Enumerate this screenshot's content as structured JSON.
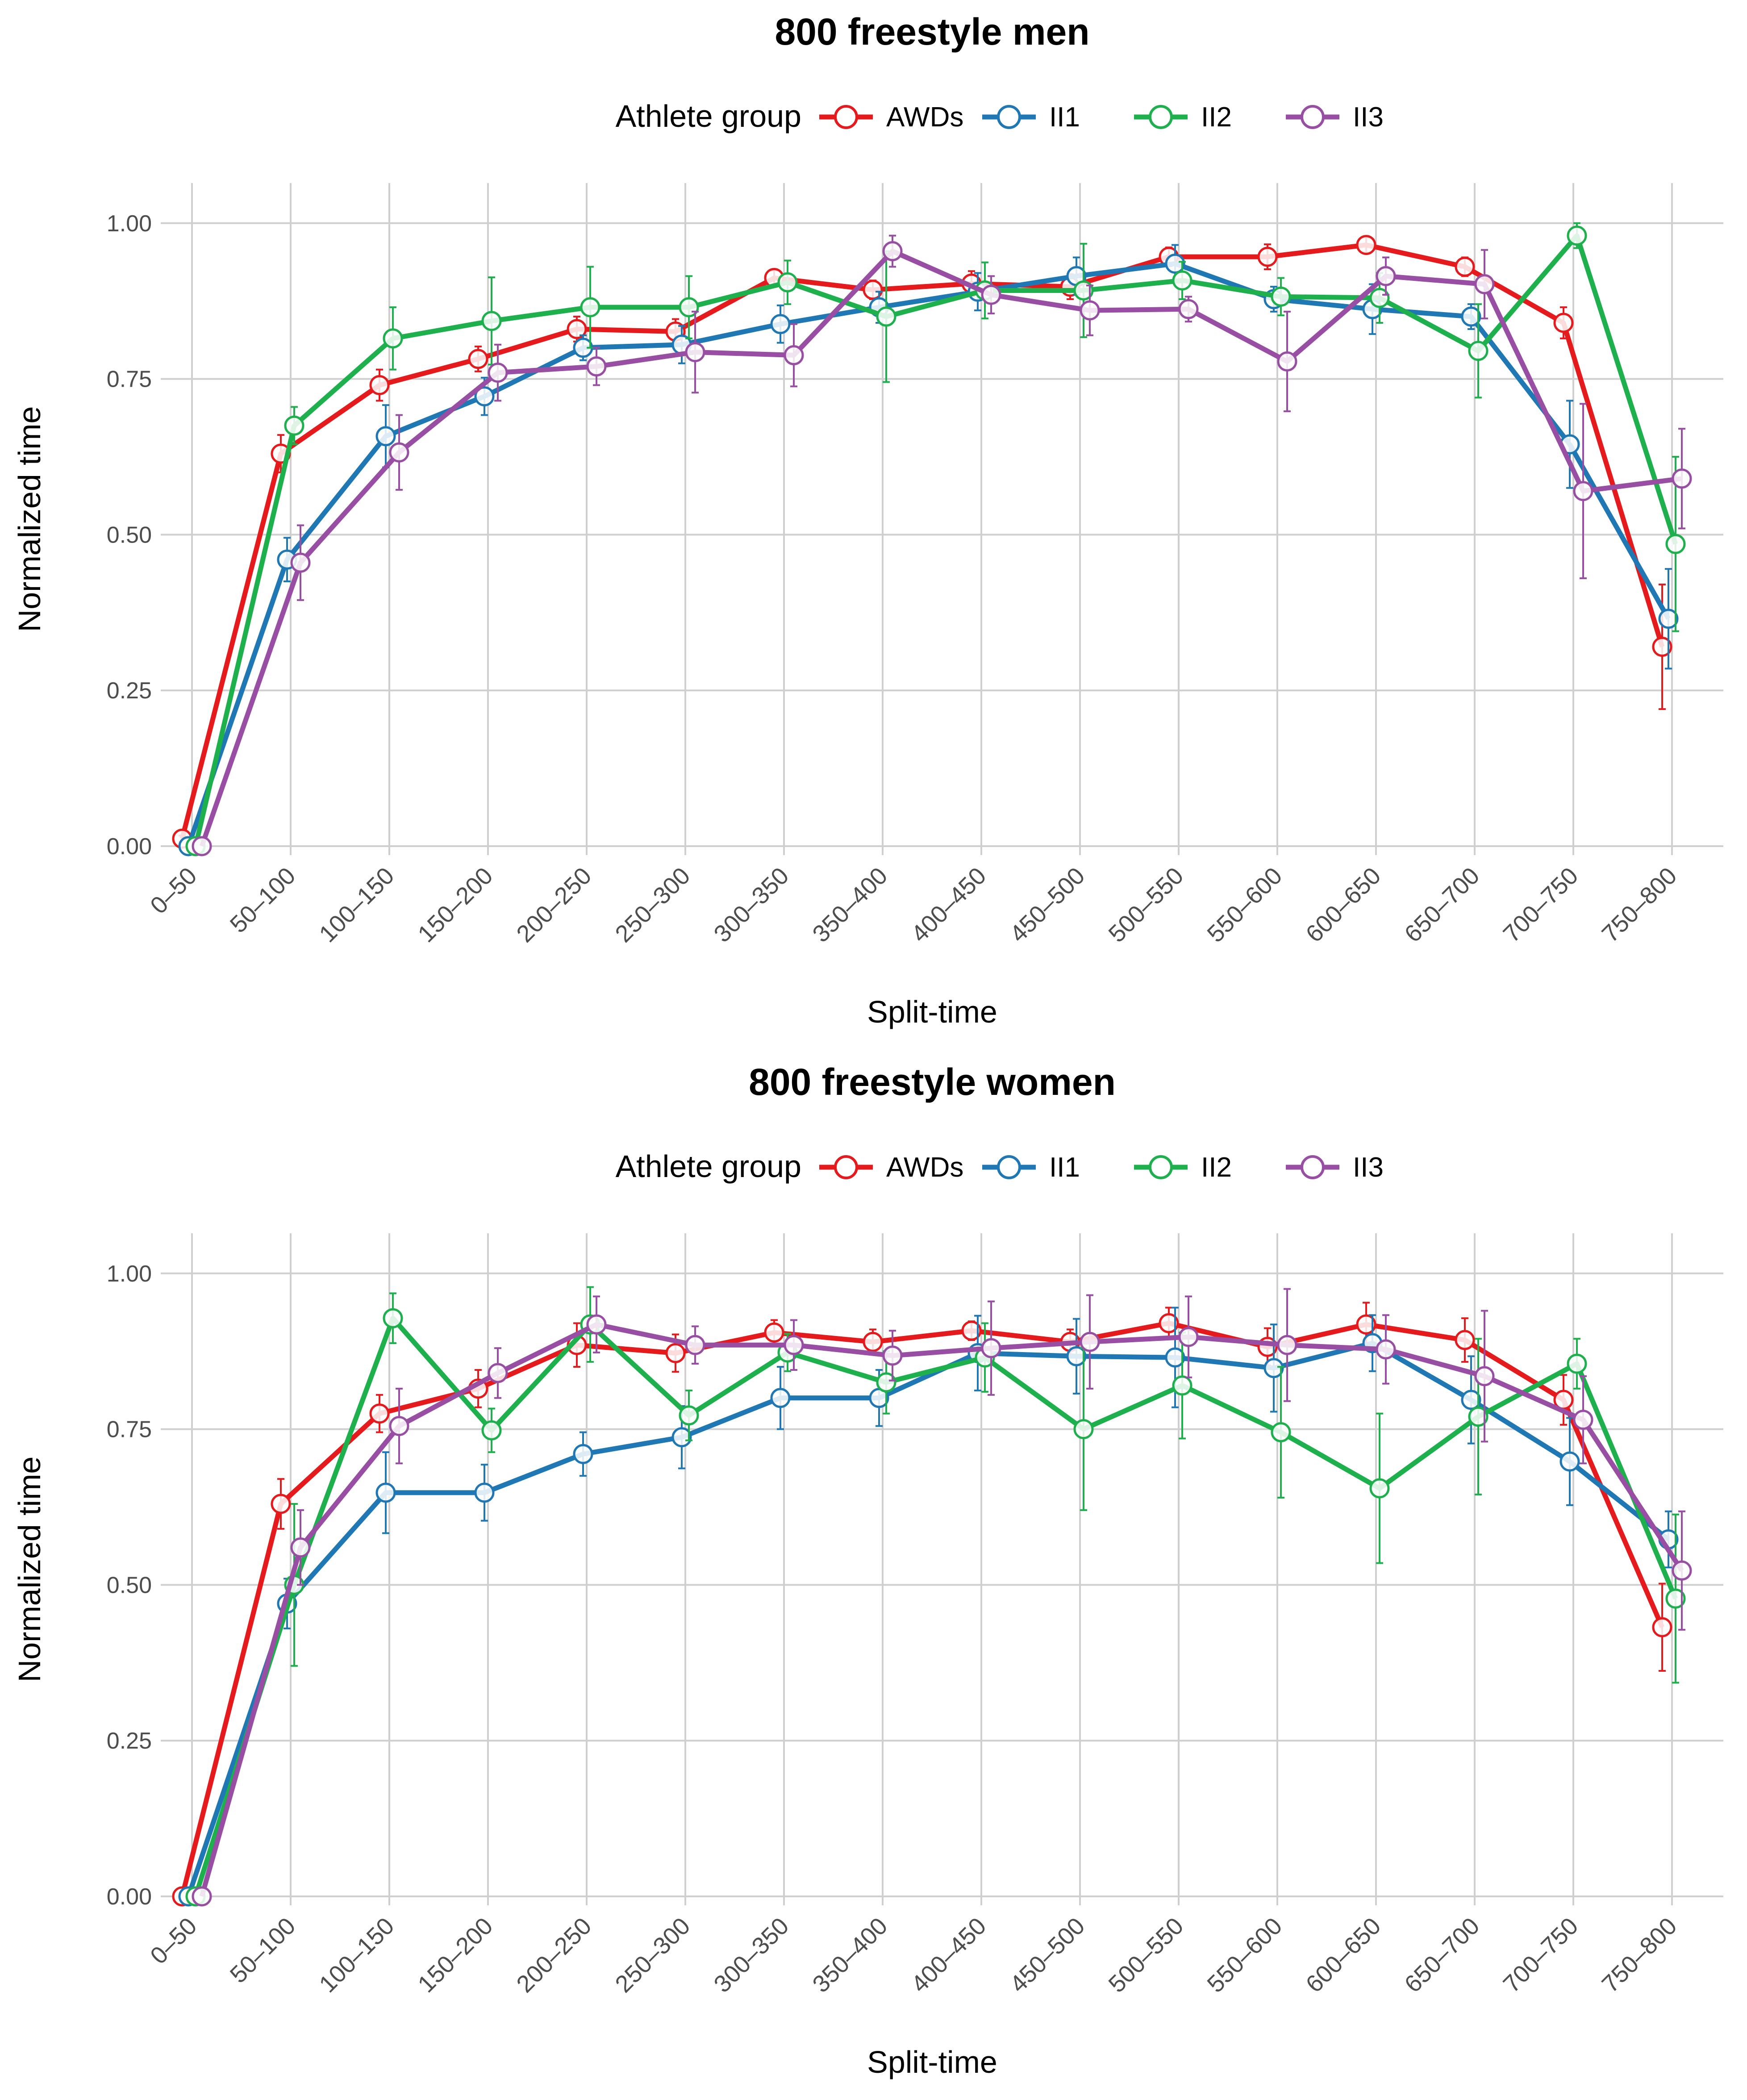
{
  "chart_data": [
    {
      "type": "line",
      "title": "800 freestyle men",
      "xlabel": "Split-time",
      "ylabel": "Normalized time",
      "ylim": [
        0,
        1.05
      ],
      "yticks": [
        "0.00",
        "0.25",
        "0.50",
        "0.75",
        "1.00"
      ],
      "legend_title": "Athlete group",
      "legend_position": "top",
      "grid": true,
      "categories": [
        "0–50",
        "50–100",
        "100–150",
        "150–200",
        "200–250",
        "250–300",
        "300–350",
        "350–400",
        "400–450",
        "450–500",
        "500–550",
        "550–600",
        "600–650",
        "650–700",
        "700–750",
        "750–800"
      ],
      "series": [
        {
          "name": "AWDs",
          "color": "#E41A1C",
          "values": [
            0.012,
            0.63,
            0.74,
            0.782,
            0.83,
            0.826,
            0.912,
            0.893,
            0.903,
            0.898,
            0.946,
            0.946,
            0.965,
            0.93,
            0.84,
            0.32
          ],
          "errors": [
            0.005,
            0.03,
            0.025,
            0.02,
            0.02,
            0.02,
            0.012,
            0.015,
            0.02,
            0.02,
            0.015,
            0.02,
            0.012,
            0.015,
            0.025,
            0.1
          ]
        },
        {
          "name": "II1",
          "color": "#1F78B4",
          "values": [
            0.0,
            0.46,
            0.658,
            0.722,
            0.8,
            0.805,
            0.838,
            0.865,
            0.89,
            0.915,
            0.935,
            0.878,
            0.862,
            0.85,
            0.645,
            0.365
          ],
          "errors": [
            0.0,
            0.035,
            0.05,
            0.03,
            0.02,
            0.03,
            0.03,
            0.025,
            0.03,
            0.03,
            0.03,
            0.02,
            0.04,
            0.02,
            0.07,
            0.08
          ]
        },
        {
          "name": "II2",
          "color": "#1DB04C",
          "values": [
            0.0,
            0.675,
            0.815,
            0.843,
            0.865,
            0.865,
            0.905,
            0.85,
            0.892,
            0.892,
            0.908,
            0.882,
            0.88,
            0.795,
            0.98,
            0.485
          ],
          "errors": [
            0.0,
            0.03,
            0.05,
            0.07,
            0.065,
            0.05,
            0.035,
            0.105,
            0.045,
            0.075,
            0.03,
            0.03,
            0.04,
            0.075,
            0.02,
            0.14
          ]
        },
        {
          "name": "II3",
          "color": "#984EA3",
          "values": [
            0.0,
            0.455,
            0.632,
            0.76,
            0.77,
            0.793,
            0.788,
            0.955,
            0.885,
            0.86,
            0.862,
            0.778,
            0.915,
            0.902,
            0.57,
            0.59
          ],
          "errors": [
            0.0,
            0.06,
            0.06,
            0.045,
            0.03,
            0.065,
            0.05,
            0.025,
            0.03,
            0.04,
            0.02,
            0.08,
            0.03,
            0.055,
            0.14,
            0.08
          ]
        }
      ]
    },
    {
      "type": "line",
      "title": "800 freestyle women",
      "xlabel": "Split-time",
      "ylabel": "Normalized time",
      "ylim": [
        0,
        1.05
      ],
      "yticks": [
        "0.00",
        "0.25",
        "0.50",
        "0.75",
        "1.00"
      ],
      "legend_title": "Athlete group",
      "legend_position": "top",
      "grid": true,
      "categories": [
        "0–50",
        "50–100",
        "100–150",
        "150–200",
        "200–250",
        "250–300",
        "300–350",
        "350–400",
        "400–450",
        "450–500",
        "500–550",
        "550–600",
        "600–650",
        "650–700",
        "700–750",
        "750–800"
      ],
      "series": [
        {
          "name": "AWDs",
          "color": "#E41A1C",
          "values": [
            0.0,
            0.63,
            0.775,
            0.815,
            0.885,
            0.872,
            0.905,
            0.89,
            0.908,
            0.89,
            0.92,
            0.882,
            0.918,
            0.893,
            0.797,
            0.432
          ],
          "errors": [
            0.0,
            0.04,
            0.03,
            0.03,
            0.035,
            0.03,
            0.02,
            0.02,
            0.015,
            0.02,
            0.025,
            0.03,
            0.035,
            0.035,
            0.04,
            0.07
          ]
        },
        {
          "name": "II1",
          "color": "#1F78B4",
          "values": [
            0.0,
            0.47,
            0.648,
            0.648,
            0.71,
            0.737,
            0.8,
            0.8,
            0.872,
            0.867,
            0.865,
            0.848,
            0.888,
            0.797,
            0.698,
            0.573
          ],
          "errors": [
            0.0,
            0.04,
            0.065,
            0.045,
            0.035,
            0.05,
            0.05,
            0.045,
            0.06,
            0.06,
            0.08,
            0.07,
            0.045,
            0.07,
            0.07,
            0.045
          ]
        },
        {
          "name": "II2",
          "color": "#1DB04C",
          "values": [
            0.0,
            0.5,
            0.928,
            0.748,
            0.918,
            0.772,
            0.873,
            0.825,
            0.865,
            0.75,
            0.82,
            0.745,
            0.655,
            0.77,
            0.855,
            0.478
          ],
          "errors": [
            0.0,
            0.13,
            0.04,
            0.035,
            0.06,
            0.04,
            0.03,
            0.05,
            0.055,
            0.13,
            0.085,
            0.105,
            0.12,
            0.125,
            0.04,
            0.135
          ]
        },
        {
          "name": "II3",
          "color": "#984EA3",
          "values": [
            0.0,
            0.56,
            0.755,
            0.84,
            0.918,
            0.885,
            0.885,
            0.868,
            0.88,
            0.89,
            0.898,
            0.885,
            0.878,
            0.835,
            0.765,
            0.523
          ],
          "errors": [
            0.0,
            0.06,
            0.06,
            0.04,
            0.045,
            0.03,
            0.04,
            0.04,
            0.075,
            0.075,
            0.065,
            0.09,
            0.055,
            0.105,
            0.07,
            0.095
          ]
        }
      ]
    }
  ]
}
